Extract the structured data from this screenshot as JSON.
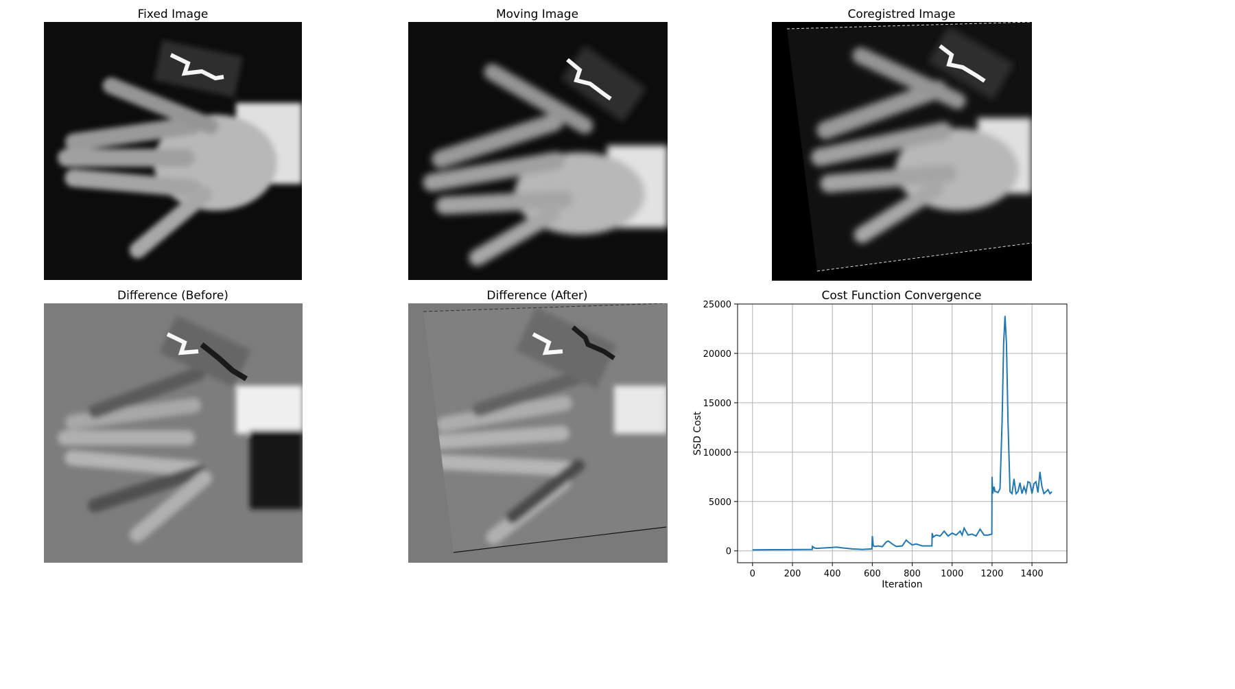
{
  "panels": {
    "fixed_title": "Fixed Image",
    "moving_title": "Moving Image",
    "coregistered_title": "Coregistred Image",
    "diff_before_title": "Difference (Before)",
    "diff_after_title": "Difference (After)",
    "cost_title": "Cost Function Convergence"
  },
  "colors": {
    "line": "#1f77b4",
    "grid": "#b0b0b0",
    "xray_bg": "#0c0c0c",
    "diff_bg": "#7d7d7d"
  },
  "chart_data": {
    "type": "line",
    "title": "Cost Function Convergence",
    "xlabel": "Iteration",
    "ylabel": "SSD Cost",
    "xlim": [
      -75,
      1575
    ],
    "ylim": [
      -1200,
      25000
    ],
    "xticks": [
      0,
      200,
      400,
      600,
      800,
      1000,
      1200,
      1400
    ],
    "yticks": [
      0,
      5000,
      10000,
      15000,
      20000,
      25000
    ],
    "grid": true,
    "series": [
      {
        "x": [
          0,
          100,
          200,
          299,
          300,
          310,
          320,
          400,
          420,
          450,
          500,
          550,
          598,
          600,
          605,
          615,
          630,
          650,
          670,
          680,
          700,
          720,
          750,
          770,
          780,
          800,
          820,
          850,
          880,
          899,
          900,
          905,
          920,
          940,
          960,
          980,
          1000,
          1020,
          1040,
          1050,
          1060,
          1080,
          1100,
          1120,
          1140,
          1160,
          1180,
          1199,
          1200,
          1203,
          1210,
          1215,
          1220,
          1230,
          1240,
          1250,
          1258,
          1265,
          1272,
          1280,
          1290,
          1300,
          1310,
          1320,
          1330,
          1340,
          1350,
          1360,
          1370,
          1380,
          1390,
          1400,
          1410,
          1420,
          1430,
          1440,
          1450,
          1460,
          1470,
          1480,
          1490,
          1500
        ],
        "y": [
          100,
          120,
          130,
          150,
          450,
          300,
          250,
          350,
          380,
          300,
          200,
          150,
          200,
          1500,
          500,
          450,
          500,
          420,
          900,
          1000,
          700,
          450,
          500,
          1100,
          900,
          600,
          700,
          500,
          500,
          500,
          1800,
          1400,
          1600,
          1500,
          2000,
          1500,
          1800,
          1600,
          2000,
          1600,
          2300,
          1600,
          1700,
          1500,
          2200,
          1600,
          1600,
          1700,
          7500,
          5800,
          6500,
          6000,
          6000,
          5900,
          6300,
          13000,
          21000,
          23800,
          21000,
          13000,
          6000,
          5800,
          7300,
          5800,
          6000,
          6900,
          5800,
          6500,
          5900,
          7000,
          6900,
          5800,
          6800,
          7000,
          5900,
          8000,
          6500,
          5800,
          6000,
          6200,
          5800,
          6000
        ]
      }
    ]
  }
}
